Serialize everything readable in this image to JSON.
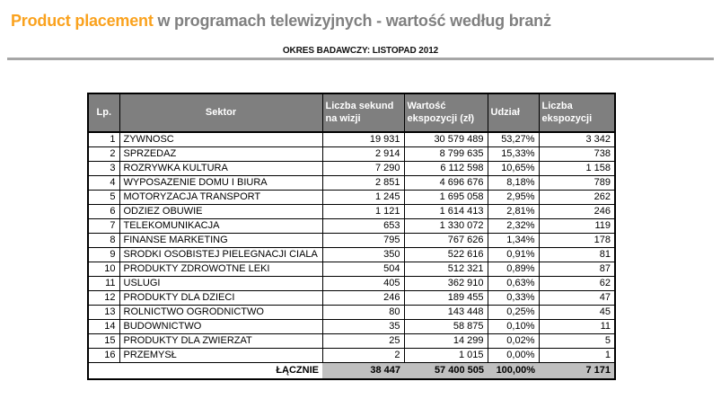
{
  "page": {
    "title_highlight": "Product placement",
    "title_rest": " w programach telewizyjnych - wartość według branż",
    "subtitle": "OKRES BADAWCZY: LISTOPAD 2012"
  },
  "colors": {
    "accent_orange": "#FAA21E",
    "title_gray": "#808080",
    "header_bg": "#7F7F7F",
    "header_text": "#FFFFFF",
    "total_row_bg": "#C0C0C0",
    "rule_gray": "#A6A6A6"
  },
  "table": {
    "columns": [
      "Lp.",
      "Sektor",
      "Liczba sekund na wizji",
      "Wartość ekspozycji (zł)",
      "Udział",
      "Liczba ekspozycji"
    ],
    "rows": [
      {
        "lp": "1",
        "sektor": "ZYWNOSC",
        "sekundy": "19 931",
        "wartosc": "30 579 489",
        "udzial": "53,27%",
        "ekspozycje": "3 342"
      },
      {
        "lp": "2",
        "sektor": "SPRZEDAZ",
        "sekundy": "2 914",
        "wartosc": "8 799 635",
        "udzial": "15,33%",
        "ekspozycje": "738"
      },
      {
        "lp": "3",
        "sektor": "ROZRYWKA KULTURA",
        "sekundy": "7 290",
        "wartosc": "6 112 598",
        "udzial": "10,65%",
        "ekspozycje": "1 158"
      },
      {
        "lp": "4",
        "sektor": "WYPOSAZENIE DOMU I BIURA",
        "sekundy": "2 851",
        "wartosc": "4 696 676",
        "udzial": "8,18%",
        "ekspozycje": "789"
      },
      {
        "lp": "5",
        "sektor": "MOTORYZACJA TRANSPORT",
        "sekundy": "1 245",
        "wartosc": "1 695 058",
        "udzial": "2,95%",
        "ekspozycje": "262"
      },
      {
        "lp": "6",
        "sektor": "ODZIEZ OBUWIE",
        "sekundy": "1 121",
        "wartosc": "1 614 413",
        "udzial": "2,81%",
        "ekspozycje": "246"
      },
      {
        "lp": "7",
        "sektor": "TELEKOMUNIKACJA",
        "sekundy": "653",
        "wartosc": "1 330 072",
        "udzial": "2,32%",
        "ekspozycje": "119"
      },
      {
        "lp": "8",
        "sektor": "FINANSE MARKETING",
        "sekundy": "795",
        "wartosc": "767 626",
        "udzial": "1,34%",
        "ekspozycje": "178"
      },
      {
        "lp": "9",
        "sektor": "SRODKI OSOBISTEJ PIELEGNACJI CIALA",
        "sekundy": "350",
        "wartosc": "522 616",
        "udzial": "0,91%",
        "ekspozycje": "81"
      },
      {
        "lp": "10",
        "sektor": "PRODUKTY ZDROWOTNE LEKI",
        "sekundy": "504",
        "wartosc": "512 321",
        "udzial": "0,89%",
        "ekspozycje": "87"
      },
      {
        "lp": "11",
        "sektor": "USLUGI",
        "sekundy": "405",
        "wartosc": "362 910",
        "udzial": "0,63%",
        "ekspozycje": "62"
      },
      {
        "lp": "12",
        "sektor": "PRODUKTY DLA DZIECI",
        "sekundy": "246",
        "wartosc": "189 455",
        "udzial": "0,33%",
        "ekspozycje": "47"
      },
      {
        "lp": "13",
        "sektor": "ROLNICTWO OGRODNICTWO",
        "sekundy": "80",
        "wartosc": "143 448",
        "udzial": "0,25%",
        "ekspozycje": "45"
      },
      {
        "lp": "14",
        "sektor": "BUDOWNICTWO",
        "sekundy": "35",
        "wartosc": "58 875",
        "udzial": "0,10%",
        "ekspozycje": "11"
      },
      {
        "lp": "15",
        "sektor": "PRODUKTY DLA ZWIERZAT",
        "sekundy": "25",
        "wartosc": "14 299",
        "udzial": "0,02%",
        "ekspozycje": "5"
      },
      {
        "lp": "16",
        "sektor": "PRZEMYSŁ",
        "sekundy": "2",
        "wartosc": "1 015",
        "udzial": "0,00%",
        "ekspozycje": "1"
      }
    ],
    "total": {
      "label": "ŁĄCZNIE",
      "sekundy": "38 447",
      "wartosc": "57 400 505",
      "udzial": "100,00%",
      "ekspozycje": "7 171"
    }
  },
  "chart_data": {
    "type": "table",
    "title": "Product placement w programach telewizyjnych - wartość według branż",
    "subtitle": "OKRES BADAWCZY: LISTOPAD 2012",
    "columns": [
      "Lp.",
      "Sektor",
      "Liczba sekund na wizji",
      "Wartość ekspozycji (zł)",
      "Udział",
      "Liczba ekspozycji"
    ],
    "categories": [
      "ZYWNOSC",
      "SPRZEDAZ",
      "ROZRYWKA KULTURA",
      "WYPOSAZENIE DOMU I BIURA",
      "MOTORYZACJA TRANSPORT",
      "ODZIEZ OBUWIE",
      "TELEKOMUNIKACJA",
      "FINANSE MARKETING",
      "SRODKI OSOBISTEJ PIELEGNACJI CIALA",
      "PRODUKTY ZDROWOTNE LEKI",
      "USLUGI",
      "PRODUKTY DLA DZIECI",
      "ROLNICTWO OGRODNICTWO",
      "BUDOWNICTWO",
      "PRODUKTY DLA ZWIERZAT",
      "PRZEMYSŁ"
    ],
    "series": [
      {
        "name": "Liczba sekund na wizji",
        "values": [
          19931,
          2914,
          7290,
          2851,
          1245,
          1121,
          653,
          795,
          350,
          504,
          405,
          246,
          80,
          35,
          25,
          2
        ]
      },
      {
        "name": "Wartość ekspozycji (zł)",
        "values": [
          30579489,
          8799635,
          6112598,
          4696676,
          1695058,
          1614413,
          1330072,
          767626,
          522616,
          512321,
          362910,
          189455,
          143448,
          58875,
          14299,
          1015
        ]
      },
      {
        "name": "Udział (%)",
        "values": [
          53.27,
          15.33,
          10.65,
          8.18,
          2.95,
          2.81,
          2.32,
          1.34,
          0.91,
          0.89,
          0.63,
          0.33,
          0.25,
          0.1,
          0.02,
          0.0
        ]
      },
      {
        "name": "Liczba ekspozycji",
        "values": [
          3342,
          738,
          1158,
          789,
          262,
          246,
          119,
          178,
          81,
          87,
          62,
          47,
          45,
          11,
          5,
          1
        ]
      }
    ],
    "totals": {
      "Liczba sekund na wizji": 38447,
      "Wartość ekspozycji (zł)": 57400505,
      "Udział (%)": 100.0,
      "Liczba ekspozycji": 7171
    }
  }
}
